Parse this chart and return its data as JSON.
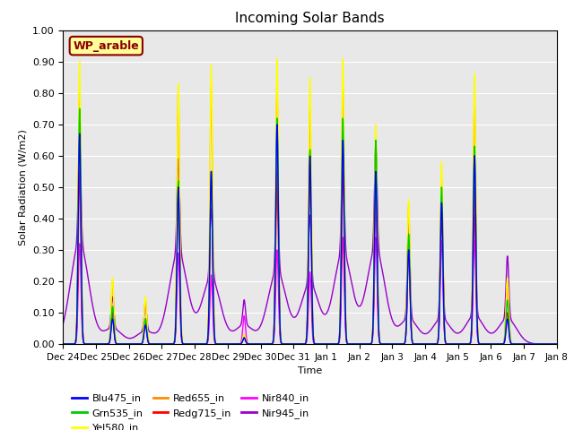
{
  "title": "Incoming Solar Bands",
  "xlabel": "Time",
  "ylabel": "Solar Radiation (W/m2)",
  "ylim": [
    0.0,
    1.0
  ],
  "yticks": [
    0.0,
    0.1,
    0.2,
    0.3,
    0.4,
    0.5,
    0.6,
    0.7,
    0.8,
    0.9,
    1.0
  ],
  "x_tick_labels": [
    "Dec 24",
    "Dec 25",
    "Dec 26",
    "Dec 27",
    "Dec 28",
    "Dec 29",
    "Dec 30",
    "Dec 31",
    "Jan 1",
    "Jan 2",
    "Jan 3",
    "Jan 4",
    "Jan 5",
    "Jan 6",
    "Jan 7",
    "Jan 8"
  ],
  "annotation_text": "WP_arable",
  "annotation_color": "#8B0000",
  "annotation_bg": "#FFFF99",
  "background_color": "#E8E8E8",
  "series": [
    {
      "name": "Blu475_in",
      "color": "#0000FF",
      "lw": 1.0
    },
    {
      "name": "Grn535_in",
      "color": "#00CC00",
      "lw": 1.0
    },
    {
      "name": "Yel580_in",
      "color": "#FFFF00",
      "lw": 1.0
    },
    {
      "name": "Red655_in",
      "color": "#FF8C00",
      "lw": 1.0
    },
    {
      "name": "Redg715_in",
      "color": "#FF0000",
      "lw": 1.0
    },
    {
      "name": "Nir840_in",
      "color": "#FF00FF",
      "lw": 1.0
    },
    {
      "name": "Nir945_in",
      "color": "#9900CC",
      "lw": 1.0
    }
  ],
  "day_peaks": {
    "yel": [
      0.9,
      0.21,
      0.15,
      0.83,
      0.89,
      0.03,
      0.91,
      0.85,
      0.91,
      0.7,
      0.46,
      0.58,
      0.86,
      0.21,
      0.0
    ],
    "red": [
      0.81,
      0.2,
      0.14,
      0.81,
      0.82,
      0.03,
      0.82,
      0.76,
      0.82,
      0.65,
      0.44,
      0.53,
      0.77,
      0.2,
      0.0
    ],
    "rg": [
      0.55,
      0.1,
      0.08,
      0.5,
      0.55,
      0.02,
      0.55,
      0.55,
      0.55,
      0.5,
      0.32,
      0.5,
      0.5,
      0.1,
      0.0
    ],
    "nir840": [
      0.32,
      0.1,
      0.08,
      0.29,
      0.22,
      0.09,
      0.3,
      0.23,
      0.34,
      0.34,
      0.32,
      0.33,
      0.33,
      0.2,
      0.0
    ],
    "blu": [
      0.67,
      0.08,
      0.06,
      0.5,
      0.55,
      0.02,
      0.7,
      0.6,
      0.65,
      0.55,
      0.3,
      0.45,
      0.6,
      0.08,
      0.0
    ],
    "grn": [
      0.75,
      0.12,
      0.08,
      0.52,
      0.55,
      0.02,
      0.72,
      0.62,
      0.72,
      0.65,
      0.35,
      0.5,
      0.63,
      0.14,
      0.0
    ],
    "nir945": [
      0.32,
      0.1,
      0.08,
      0.3,
      0.22,
      0.08,
      0.3,
      0.22,
      0.33,
      0.33,
      0.3,
      0.32,
      0.32,
      0.2,
      0.0
    ],
    "nir945_broad": [
      0.32,
      0.05,
      0.04,
      0.29,
      0.21,
      0.06,
      0.23,
      0.19,
      0.29,
      0.3,
      0.08,
      0.08,
      0.09,
      0.08,
      0.0
    ]
  }
}
